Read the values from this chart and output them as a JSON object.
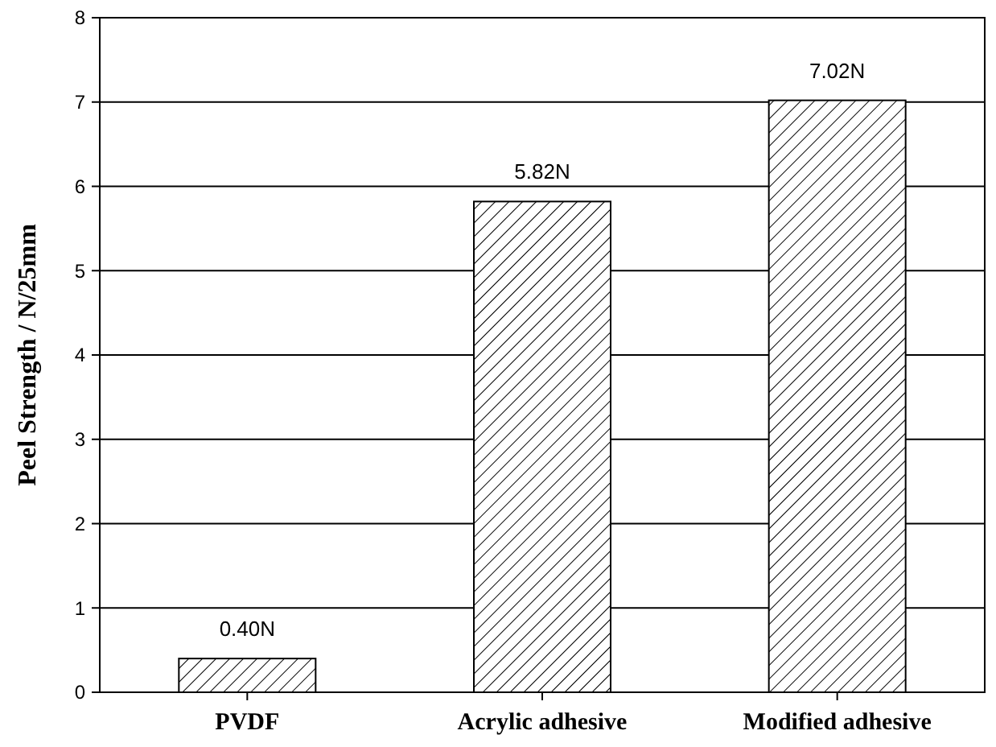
{
  "chart_data": {
    "type": "bar",
    "ylabel": "Peel Strength / N/25mm",
    "categories": [
      "PVDF",
      "Acrylic adhesive",
      "Modified adhesive"
    ],
    "values": [
      0.4,
      5.82,
      7.02
    ],
    "value_labels": [
      "0.40N",
      "5.82N",
      "7.02N"
    ],
    "color": "#000000",
    "ylim": [
      0,
      8
    ],
    "yticks": [
      0,
      1,
      2,
      3,
      4,
      5,
      6,
      7,
      8
    ],
    "grid": "y"
  }
}
